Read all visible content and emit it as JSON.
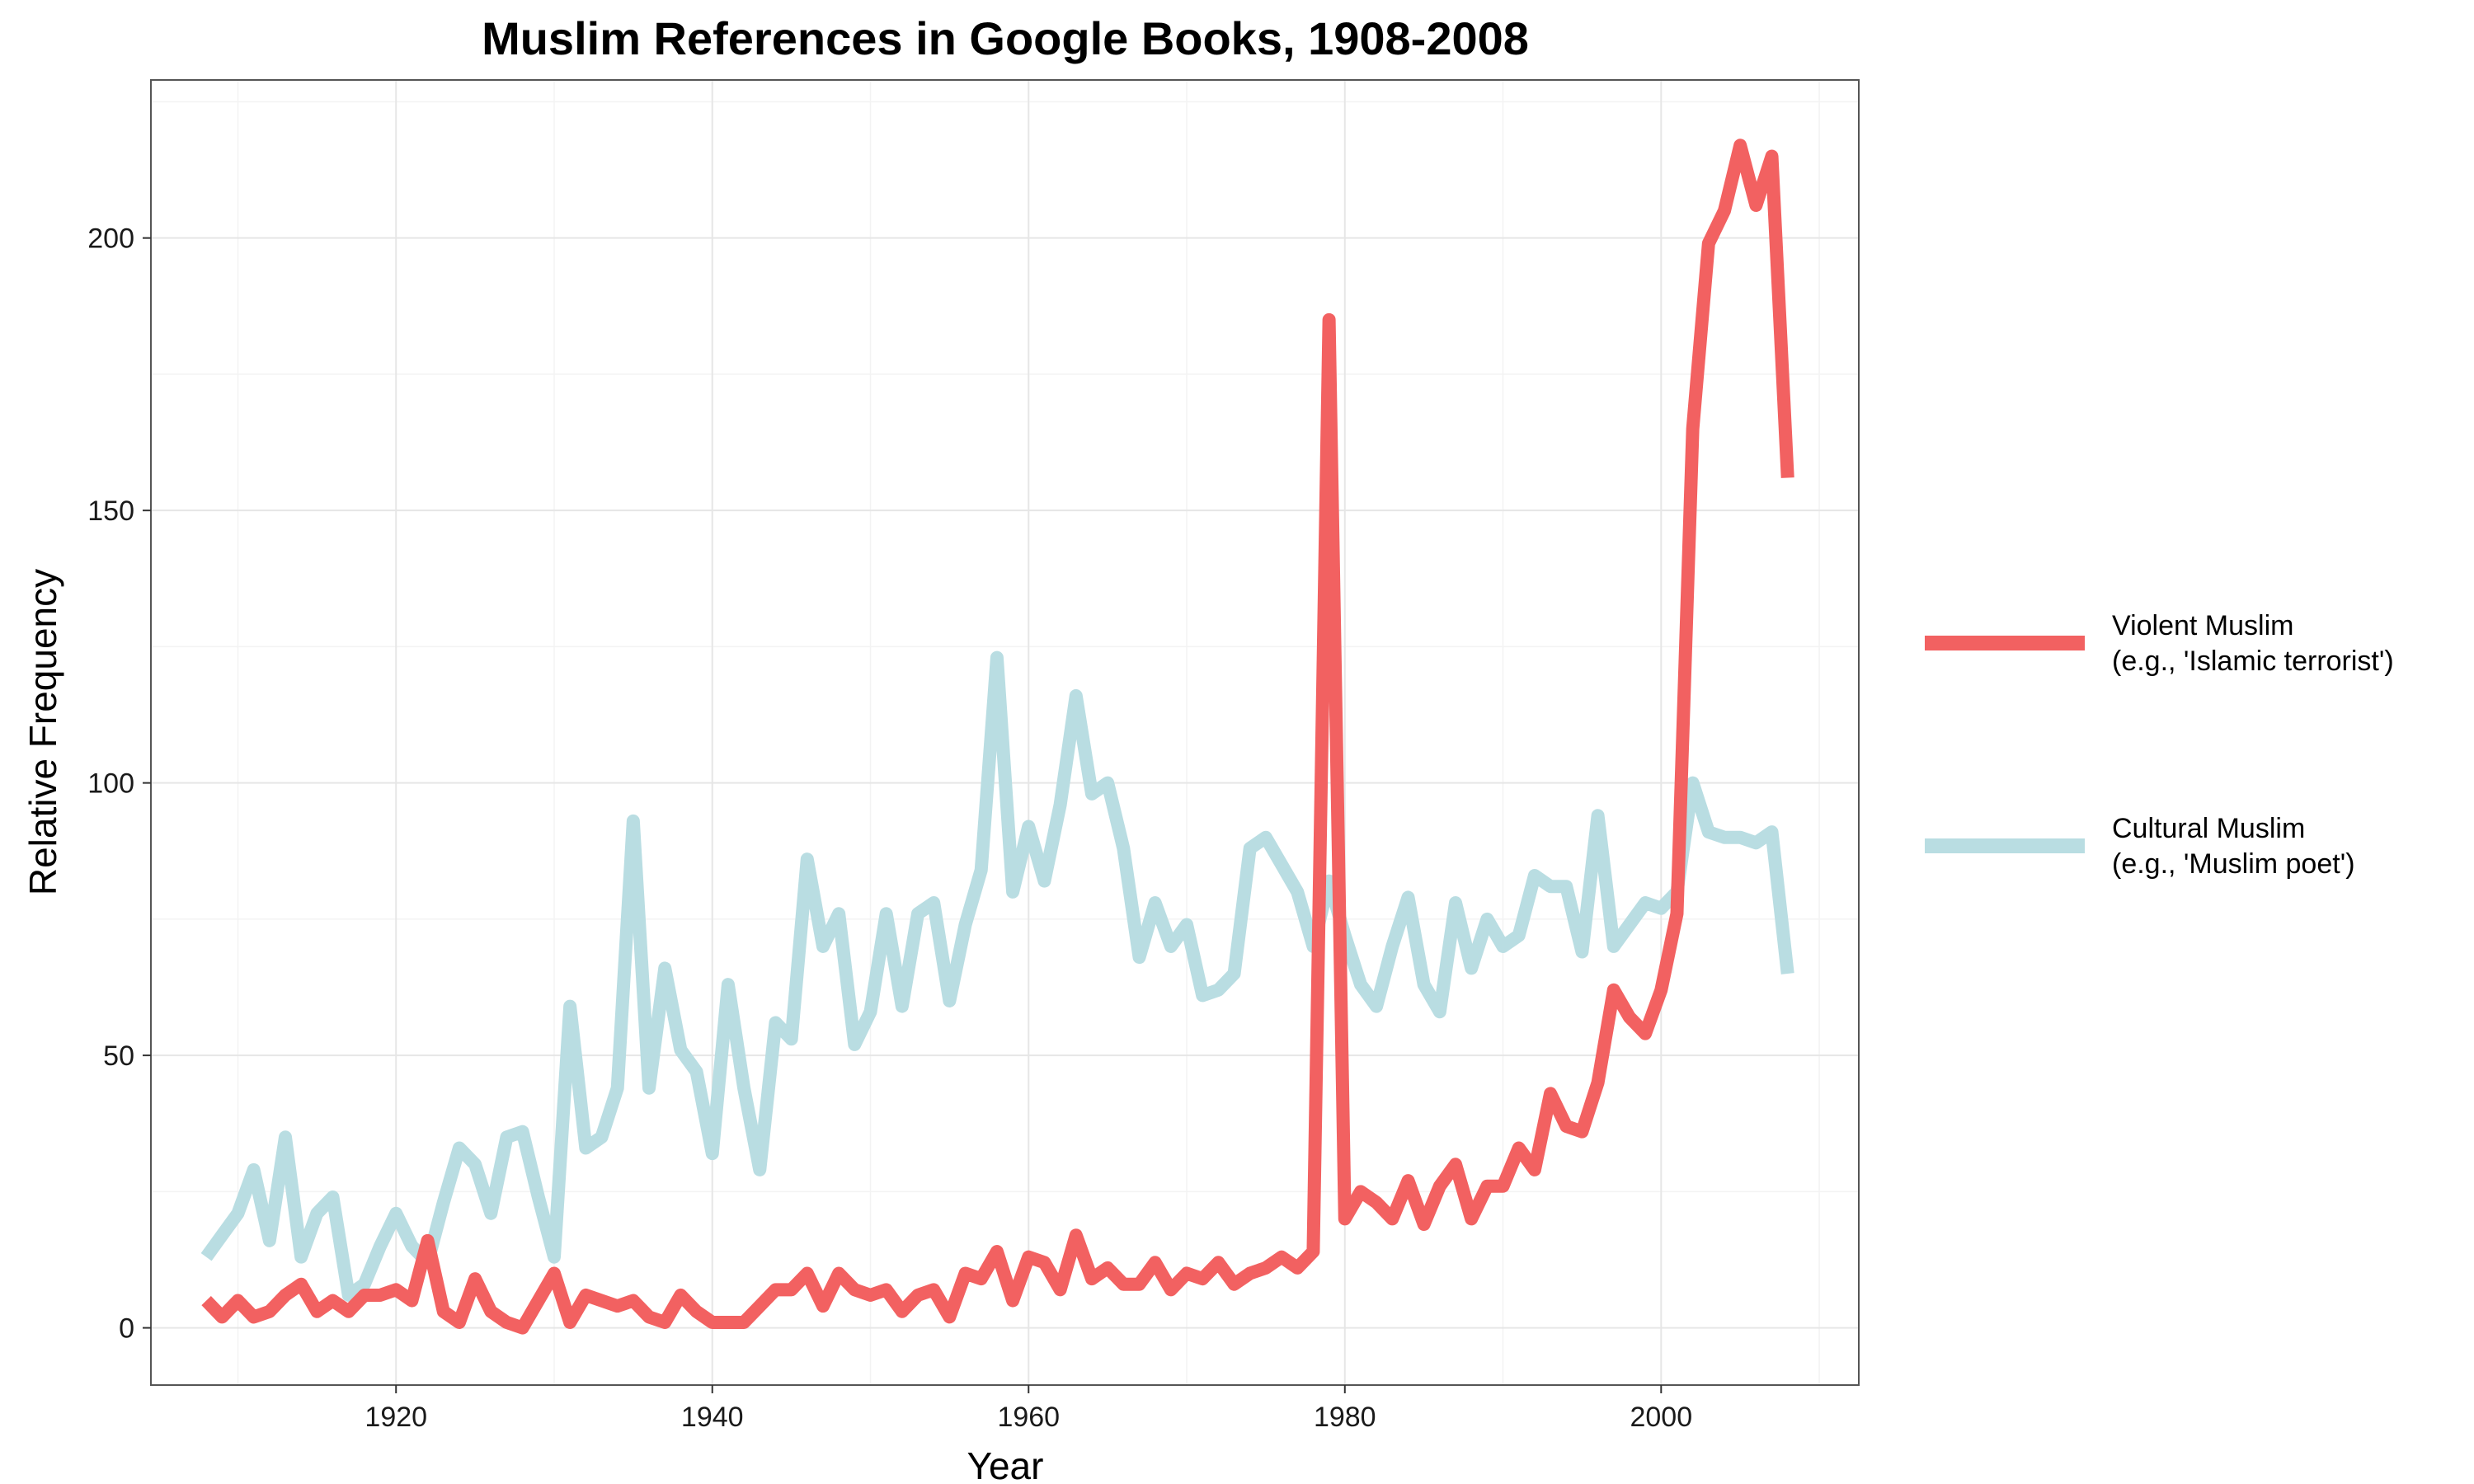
{
  "chart_data": {
    "type": "line",
    "title": "Muslim References in Google Books, 1908-2008",
    "xlabel": "Year",
    "ylabel": "Relative Frequency",
    "xlim": [
      1904.5,
      2012.5
    ],
    "ylim": [
      -10.5,
      229
    ],
    "x_ticks": [
      1920,
      1940,
      1960,
      1980,
      2000
    ],
    "x_minor_ticks": [
      1910,
      1930,
      1950,
      1970,
      1990,
      2010
    ],
    "y_ticks": [
      0,
      50,
      100,
      150,
      200
    ],
    "y_minor_ticks": [
      25,
      75,
      125,
      175,
      225
    ],
    "grid": true,
    "legend_position": "right",
    "series": [
      {
        "name": "Violent Muslim",
        "name_sub": "(e.g., 'Islamic terrorist')",
        "color": "#f26161",
        "x": [
          1908,
          1909,
          1910,
          1911,
          1912,
          1913,
          1914,
          1915,
          1916,
          1917,
          1918,
          1919,
          1920,
          1921,
          1922,
          1923,
          1924,
          1925,
          1926,
          1927,
          1928,
          1929,
          1930,
          1931,
          1932,
          1933,
          1934,
          1935,
          1936,
          1937,
          1938,
          1939,
          1940,
          1941,
          1942,
          1943,
          1944,
          1945,
          1946,
          1947,
          1948,
          1949,
          1950,
          1951,
          1952,
          1953,
          1954,
          1955,
          1956,
          1957,
          1958,
          1959,
          1960,
          1961,
          1962,
          1963,
          1964,
          1965,
          1966,
          1967,
          1968,
          1969,
          1970,
          1971,
          1972,
          1973,
          1974,
          1975,
          1976,
          1977,
          1978,
          1979,
          1980,
          1981,
          1982,
          1983,
          1984,
          1985,
          1986,
          1987,
          1988,
          1989,
          1990,
          1991,
          1992,
          1993,
          1994,
          1995,
          1996,
          1997,
          1998,
          1999,
          2000,
          2001,
          2002,
          2003,
          2004,
          2005,
          2006,
          2007,
          2008
        ],
        "y": [
          5,
          2,
          5,
          2,
          3,
          6,
          8,
          3,
          5,
          3,
          6,
          6,
          7,
          5,
          16,
          3,
          1,
          9,
          3,
          1,
          0,
          5,
          10,
          1,
          6,
          5,
          4,
          5,
          2,
          1,
          6,
          3,
          1,
          1,
          1,
          4,
          7,
          7,
          10,
          4,
          10,
          7,
          6,
          7,
          3,
          6,
          7,
          2,
          10,
          9,
          14,
          5,
          13,
          12,
          7,
          17,
          9,
          11,
          8,
          8,
          12,
          7,
          10,
          9,
          12,
          8,
          10,
          11,
          13,
          11,
          14,
          185,
          20,
          25,
          23,
          20,
          27,
          19,
          26,
          30,
          20,
          26,
          26,
          33,
          29,
          43,
          37,
          36,
          45,
          62,
          57,
          54,
          62,
          76,
          165,
          199,
          205,
          217,
          206,
          215,
          156
        ]
      },
      {
        "name": "Cultural Muslim",
        "name_sub": "(e.g., 'Muslim poet')",
        "color": "#b9dde2",
        "x": [
          1908,
          1909,
          1910,
          1911,
          1912,
          1913,
          1914,
          1915,
          1916,
          1917,
          1918,
          1919,
          1920,
          1921,
          1922,
          1923,
          1924,
          1925,
          1926,
          1927,
          1928,
          1929,
          1930,
          1931,
          1932,
          1933,
          1934,
          1935,
          1936,
          1937,
          1938,
          1939,
          1940,
          1941,
          1942,
          1943,
          1944,
          1945,
          1946,
          1947,
          1948,
          1949,
          1950,
          1951,
          1952,
          1953,
          1954,
          1955,
          1956,
          1957,
          1958,
          1959,
          1960,
          1961,
          1962,
          1963,
          1964,
          1965,
          1966,
          1967,
          1968,
          1969,
          1970,
          1971,
          1972,
          1973,
          1974,
          1975,
          1976,
          1977,
          1978,
          1979,
          1980,
          1981,
          1982,
          1983,
          1984,
          1985,
          1986,
          1987,
          1988,
          1989,
          1990,
          1991,
          1992,
          1993,
          1994,
          1995,
          1996,
          1997,
          1998,
          1999,
          2000,
          2001,
          2002,
          2003,
          2004,
          2005,
          2006,
          2007,
          2008
        ],
        "y": [
          13,
          17,
          21,
          29,
          16,
          35,
          13,
          21,
          24,
          6,
          8,
          15,
          21,
          15,
          12,
          23,
          33,
          30,
          21,
          35,
          36,
          24,
          13,
          59,
          33,
          35,
          44,
          93,
          44,
          66,
          51,
          47,
          32,
          63,
          44,
          29,
          56,
          53,
          86,
          70,
          76,
          52,
          58,
          76,
          59,
          76,
          78,
          60,
          74,
          84,
          123,
          80,
          92,
          82,
          96,
          116,
          98,
          100,
          88,
          68,
          78,
          70,
          74,
          61,
          62,
          65,
          88,
          90,
          85,
          80,
          70,
          82,
          72,
          63,
          59,
          70,
          79,
          63,
          58,
          78,
          66,
          75,
          70,
          72,
          83,
          81,
          81,
          69,
          94,
          70,
          74,
          78,
          77,
          80,
          100,
          91,
          90,
          90,
          89,
          91,
          65
        ]
      }
    ]
  }
}
